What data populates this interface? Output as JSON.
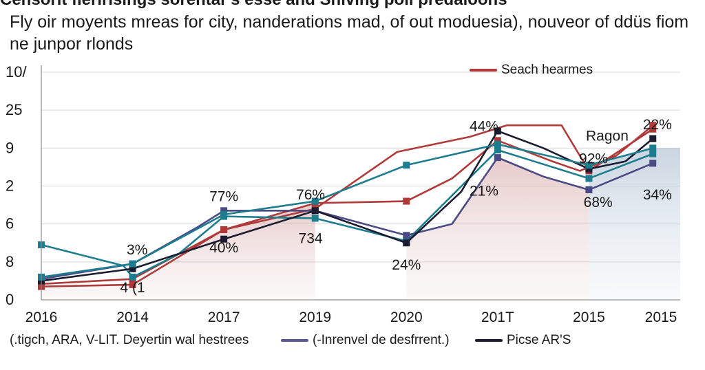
{
  "header": {
    "cut_title": "Censorit fleririsings sorentar's esse and Shiving poll predaloons",
    "subtitle_line1": "Fly oir moyents mreas for city, nanderations mad, of out moduesia), nouveor of ddüs fiom",
    "subtitle_line2": "ne junpor rlonds"
  },
  "chart_data": {
    "type": "line",
    "title": "",
    "xlabel": "",
    "ylabel": "",
    "categories": [
      "2016",
      "2014",
      "2017",
      "2019",
      "2020",
      "201T",
      "2015",
      "2015"
    ],
    "y_tick_labels": [
      "0",
      "8",
      "6",
      "2",
      "9",
      "25",
      "10/"
    ],
    "ylim": [
      0,
      6
    ],
    "grid": "horizontal",
    "series": [
      {
        "name": "Seach hearmes",
        "color": "#b03a3a",
        "x": [
          0,
          1,
          2,
          3,
          3.9,
          4.7,
          5.1,
          5.7,
          6.0,
          6.7
        ],
        "values": [
          0.42,
          0.55,
          1.85,
          2.4,
          3.9,
          4.3,
          4.6,
          4.6,
          3.4,
          4.5
        ]
      },
      {
        "name": "",
        "color": "#b03a3a",
        "x": [
          0,
          1,
          2,
          3,
          4,
          4.5,
          5,
          5.6,
          5.9,
          6.3,
          6.7
        ],
        "values": [
          0.35,
          0.4,
          1.85,
          2.55,
          2.6,
          3.2,
          4.2,
          3.65,
          3.4,
          3.8,
          4.6
        ]
      },
      {
        "name": "",
        "color": "#1d7d8f",
        "x": [
          0,
          0.9,
          1,
          1.5,
          2,
          3,
          4,
          4.5,
          5,
          6,
          6.7
        ],
        "values": [
          1.45,
          0.9,
          0.6,
          1.2,
          2.2,
          2.15,
          1.55,
          2.75,
          3.95,
          3.2,
          3.85
        ]
      },
      {
        "name": "(-Inrenvel de desfrrent.)",
        "color": "#4a4a85",
        "x": [
          0,
          1,
          1.7,
          2,
          3,
          4,
          4.5,
          5,
          5.5,
          6,
          6.7
        ],
        "values": [
          0.55,
          0.95,
          1.9,
          2.35,
          2.35,
          1.7,
          2.0,
          3.75,
          3.25,
          2.9,
          3.6
        ]
      },
      {
        "name": "Picse AR'S",
        "color": "#1c1c30",
        "x": [
          0,
          1,
          2,
          3,
          4,
          4.6,
          5,
          5.5,
          6,
          6.4,
          6.7
        ],
        "values": [
          0.5,
          0.82,
          1.6,
          2.35,
          1.5,
          2.85,
          4.45,
          4.0,
          3.45,
          3.65,
          4.25
        ]
      },
      {
        "name": "",
        "color": "#1d7d8f",
        "x": [
          0,
          1,
          2,
          3,
          4,
          5,
          6,
          6.7
        ],
        "values": [
          0.6,
          0.95,
          2.25,
          2.6,
          3.55,
          4.1,
          3.55,
          4.0
        ]
      }
    ],
    "data_labels": [
      {
        "text": "3%",
        "x": 1.05,
        "y": 1.2
      },
      {
        "text": "4 (1",
        "x": 1.0,
        "y": 0.2
      },
      {
        "text": "77%",
        "x": 2.0,
        "y": 2.6
      },
      {
        "text": "40%",
        "x": 2.0,
        "y": 1.25
      },
      {
        "text": "76%",
        "x": 2.95,
        "y": 2.65
      },
      {
        "text": "734",
        "x": 2.95,
        "y": 1.5
      },
      {
        "text": "24%",
        "x": 4.0,
        "y": 0.8
      },
      {
        "text": "44%",
        "x": 4.85,
        "y": 4.45
      },
      {
        "text": "21%",
        "x": 4.85,
        "y": 2.75
      },
      {
        "text": "Ragon",
        "x": 6.2,
        "y": 4.2
      },
      {
        "text": "92%",
        "x": 6.05,
        "y": 3.6
      },
      {
        "text": "68%",
        "x": 6.1,
        "y": 2.45
      },
      {
        "text": "22%",
        "x": 6.75,
        "y": 4.5
      },
      {
        "text": "34%",
        "x": 6.75,
        "y": 2.65
      }
    ],
    "legend_top": {
      "label": "Seach hearmes",
      "color": "#b03a3a",
      "position": "top-right"
    },
    "legend_bottom": [
      {
        "label": "(.tigch, ARA, V-LIT. Deyertin wal hestrees",
        "color": ""
      },
      {
        "label": "(-Inrenvel de desfrrent.)",
        "color": "#5a5a95"
      },
      {
        "label": "Picse AR'S",
        "color": "#1c1c30"
      }
    ]
  }
}
